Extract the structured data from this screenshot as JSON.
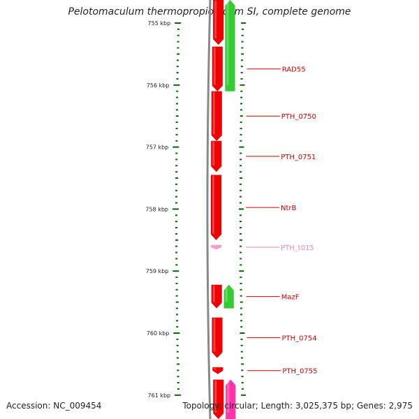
{
  "title": "Pelotomaculum thermopropionicum SI, complete genome",
  "accession": "Accession: NC_009454",
  "topology": "Topology: circular; Length: 3,025,375 bp; Genes: 2,975",
  "colors": {
    "tick": "#006600",
    "backbone": "#888888",
    "forward_gene": "#ee0000",
    "reverse_gene": "#33cc33",
    "rna_gene": "#ff99cc",
    "magenta_gene": "#ff33aa",
    "label": "#cc0000",
    "rna_label": "#ee88aa"
  },
  "scale": {
    "unit": "kbp",
    "major_ticks": [
      {
        "kbp": 755,
        "label": "755 kbp"
      },
      {
        "kbp": 756,
        "label": "756 kbp"
      },
      {
        "kbp": 757,
        "label": "757 kbp"
      },
      {
        "kbp": 758,
        "label": "758 kbp"
      },
      {
        "kbp": 759,
        "label": "759 kbp"
      },
      {
        "kbp": 760,
        "label": "760 kbp"
      },
      {
        "kbp": 761,
        "label": "761 kbp"
      }
    ]
  },
  "genes": [
    {
      "name": "RAD55",
      "strand": "forward",
      "type": "cds",
      "start_kbp": 755.38,
      "end_kbp": 756.1
    },
    {
      "name": "PTH_0750",
      "strand": "forward",
      "type": "cds",
      "start_kbp": 756.1,
      "end_kbp": 756.9
    },
    {
      "name": "PTH_0751",
      "strand": "forward",
      "type": "cds",
      "start_kbp": 756.9,
      "end_kbp": 757.4
    },
    {
      "name": "NtrB",
      "strand": "forward",
      "type": "cds",
      "start_kbp": 757.45,
      "end_kbp": 758.5
    },
    {
      "name": "PTH_t015",
      "strand": "forward",
      "type": "rna",
      "start_kbp": 758.58,
      "end_kbp": 758.65
    },
    {
      "name": "MazF",
      "strand": "forward",
      "type": "cds",
      "start_kbp": 759.22,
      "end_kbp": 759.6
    },
    {
      "name": "PTH_0754",
      "strand": "forward",
      "type": "cds",
      "start_kbp": 759.75,
      "end_kbp": 760.4
    },
    {
      "name": "PTH_0755",
      "strand": "forward",
      "type": "cds",
      "start_kbp": 760.55,
      "end_kbp": 760.66
    }
  ],
  "unlabeled_features": [
    {
      "strand": "forward",
      "type": "cds",
      "start_kbp": 754.6,
      "end_kbp": 755.35
    },
    {
      "strand": "reverse",
      "type": "cds",
      "start_kbp": 754.6,
      "end_kbp": 756.1
    },
    {
      "strand": "reverse",
      "type": "cds",
      "start_kbp": 759.22,
      "end_kbp": 759.6
    },
    {
      "strand": "forward",
      "type": "cds",
      "start_kbp": 760.75,
      "end_kbp": 761.5
    },
    {
      "strand": "reverse",
      "type": "magenta",
      "start_kbp": 760.75,
      "end_kbp": 761.5
    }
  ]
}
